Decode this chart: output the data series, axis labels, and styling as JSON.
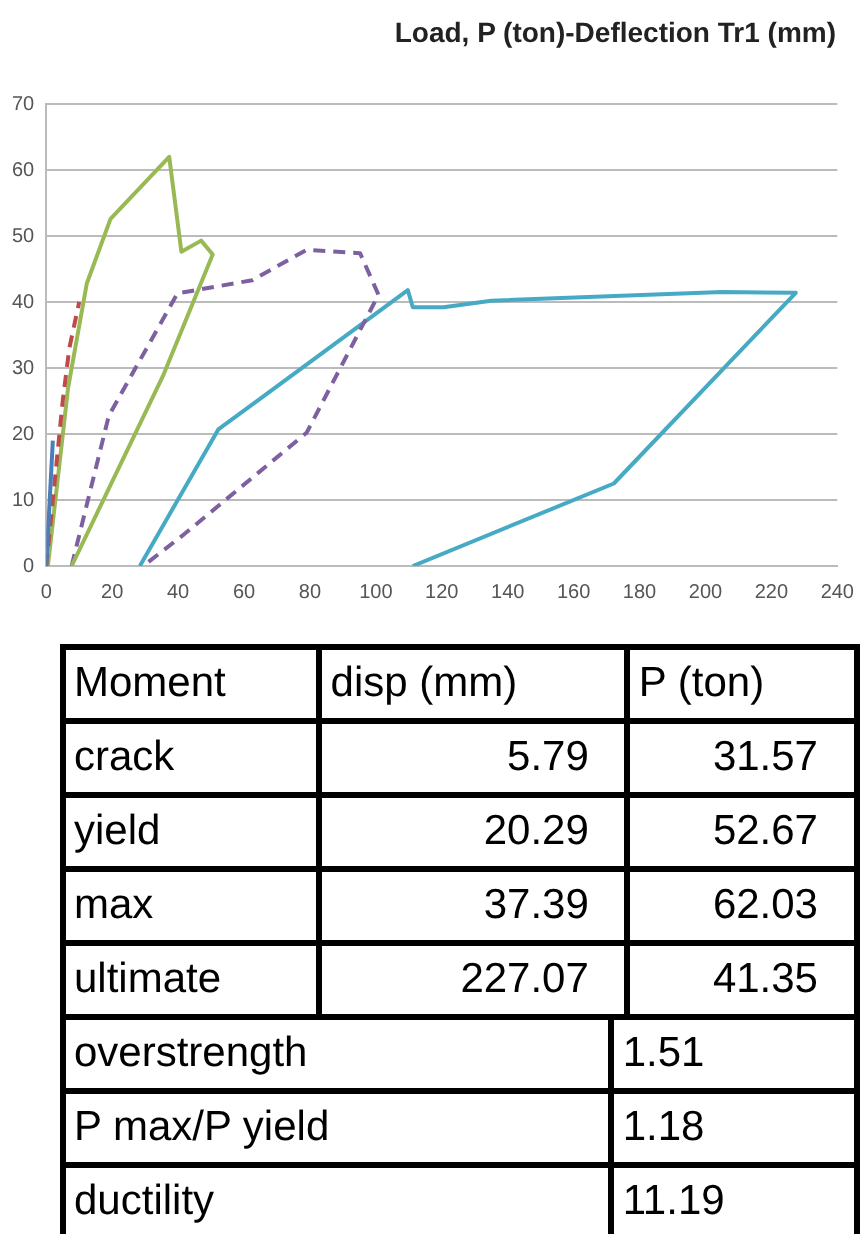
{
  "chart_data": {
    "type": "line",
    "title": "Load, P (ton)-Deflection Tr1 (mm)",
    "xlim": [
      0,
      240
    ],
    "xticks": [
      0,
      20,
      40,
      60,
      80,
      100,
      120,
      140,
      160,
      180,
      200,
      220,
      240
    ],
    "ylim": [
      0,
      70
    ],
    "yticks": [
      0,
      10,
      20,
      30,
      40,
      50,
      60,
      70
    ],
    "grid": "y",
    "legend": false,
    "marker": "none",
    "series": [
      {
        "color": "#4a7ebb",
        "line_style": "solid",
        "x": [
          0,
          2
        ],
        "values": [
          0,
          19
        ]
      },
      {
        "color": "#be4b48",
        "line_style": "dashed",
        "x": [
          0,
          3,
          5,
          7,
          10
        ],
        "values": [
          0,
          15,
          25,
          33,
          40
        ]
      },
      {
        "color": "#98b954",
        "line_style": "solid",
        "x": [
          0.5,
          6.6,
          12.3,
          19.5,
          37.3,
          41,
          47,
          50.5,
          35.6,
          7.7
        ],
        "values": [
          0,
          26.9,
          42.8,
          52.6,
          62,
          47.6,
          49.3,
          47.2,
          29,
          0
        ]
      },
      {
        "color": "#7d60a0",
        "line_style": "dashed",
        "x": [
          7.7,
          19,
          39.8,
          62.5,
          79,
          95.2,
          100.8,
          79,
          41.8,
          29.4
        ],
        "values": [
          0,
          22.8,
          41.3,
          43.3,
          47.9,
          47.4,
          41.1,
          20.2,
          4.8,
          0
        ]
      },
      {
        "color": "#46aac5",
        "line_style": "solid",
        "x": [
          28.4,
          52.2,
          109.7,
          111.2,
          120.5,
          135,
          205,
          227.4,
          172.2,
          111.2
        ],
        "values": [
          0,
          20.7,
          41.8,
          39.2,
          39.2,
          40.2,
          41.5,
          41.4,
          12.5,
          0
        ]
      }
    ],
    "annotations": [
      "Moment",
      "disp (mm)",
      "P (ton)",
      "crack",
      "5.79",
      "31.57",
      "yield",
      "20.29",
      "52.67",
      "max",
      "37.39",
      "62.03",
      "ultimate",
      "227.07",
      "41.35",
      "overstrength",
      "1.51",
      "P max/P yield",
      "1.18",
      "ductility",
      "11.19"
    ]
  }
}
